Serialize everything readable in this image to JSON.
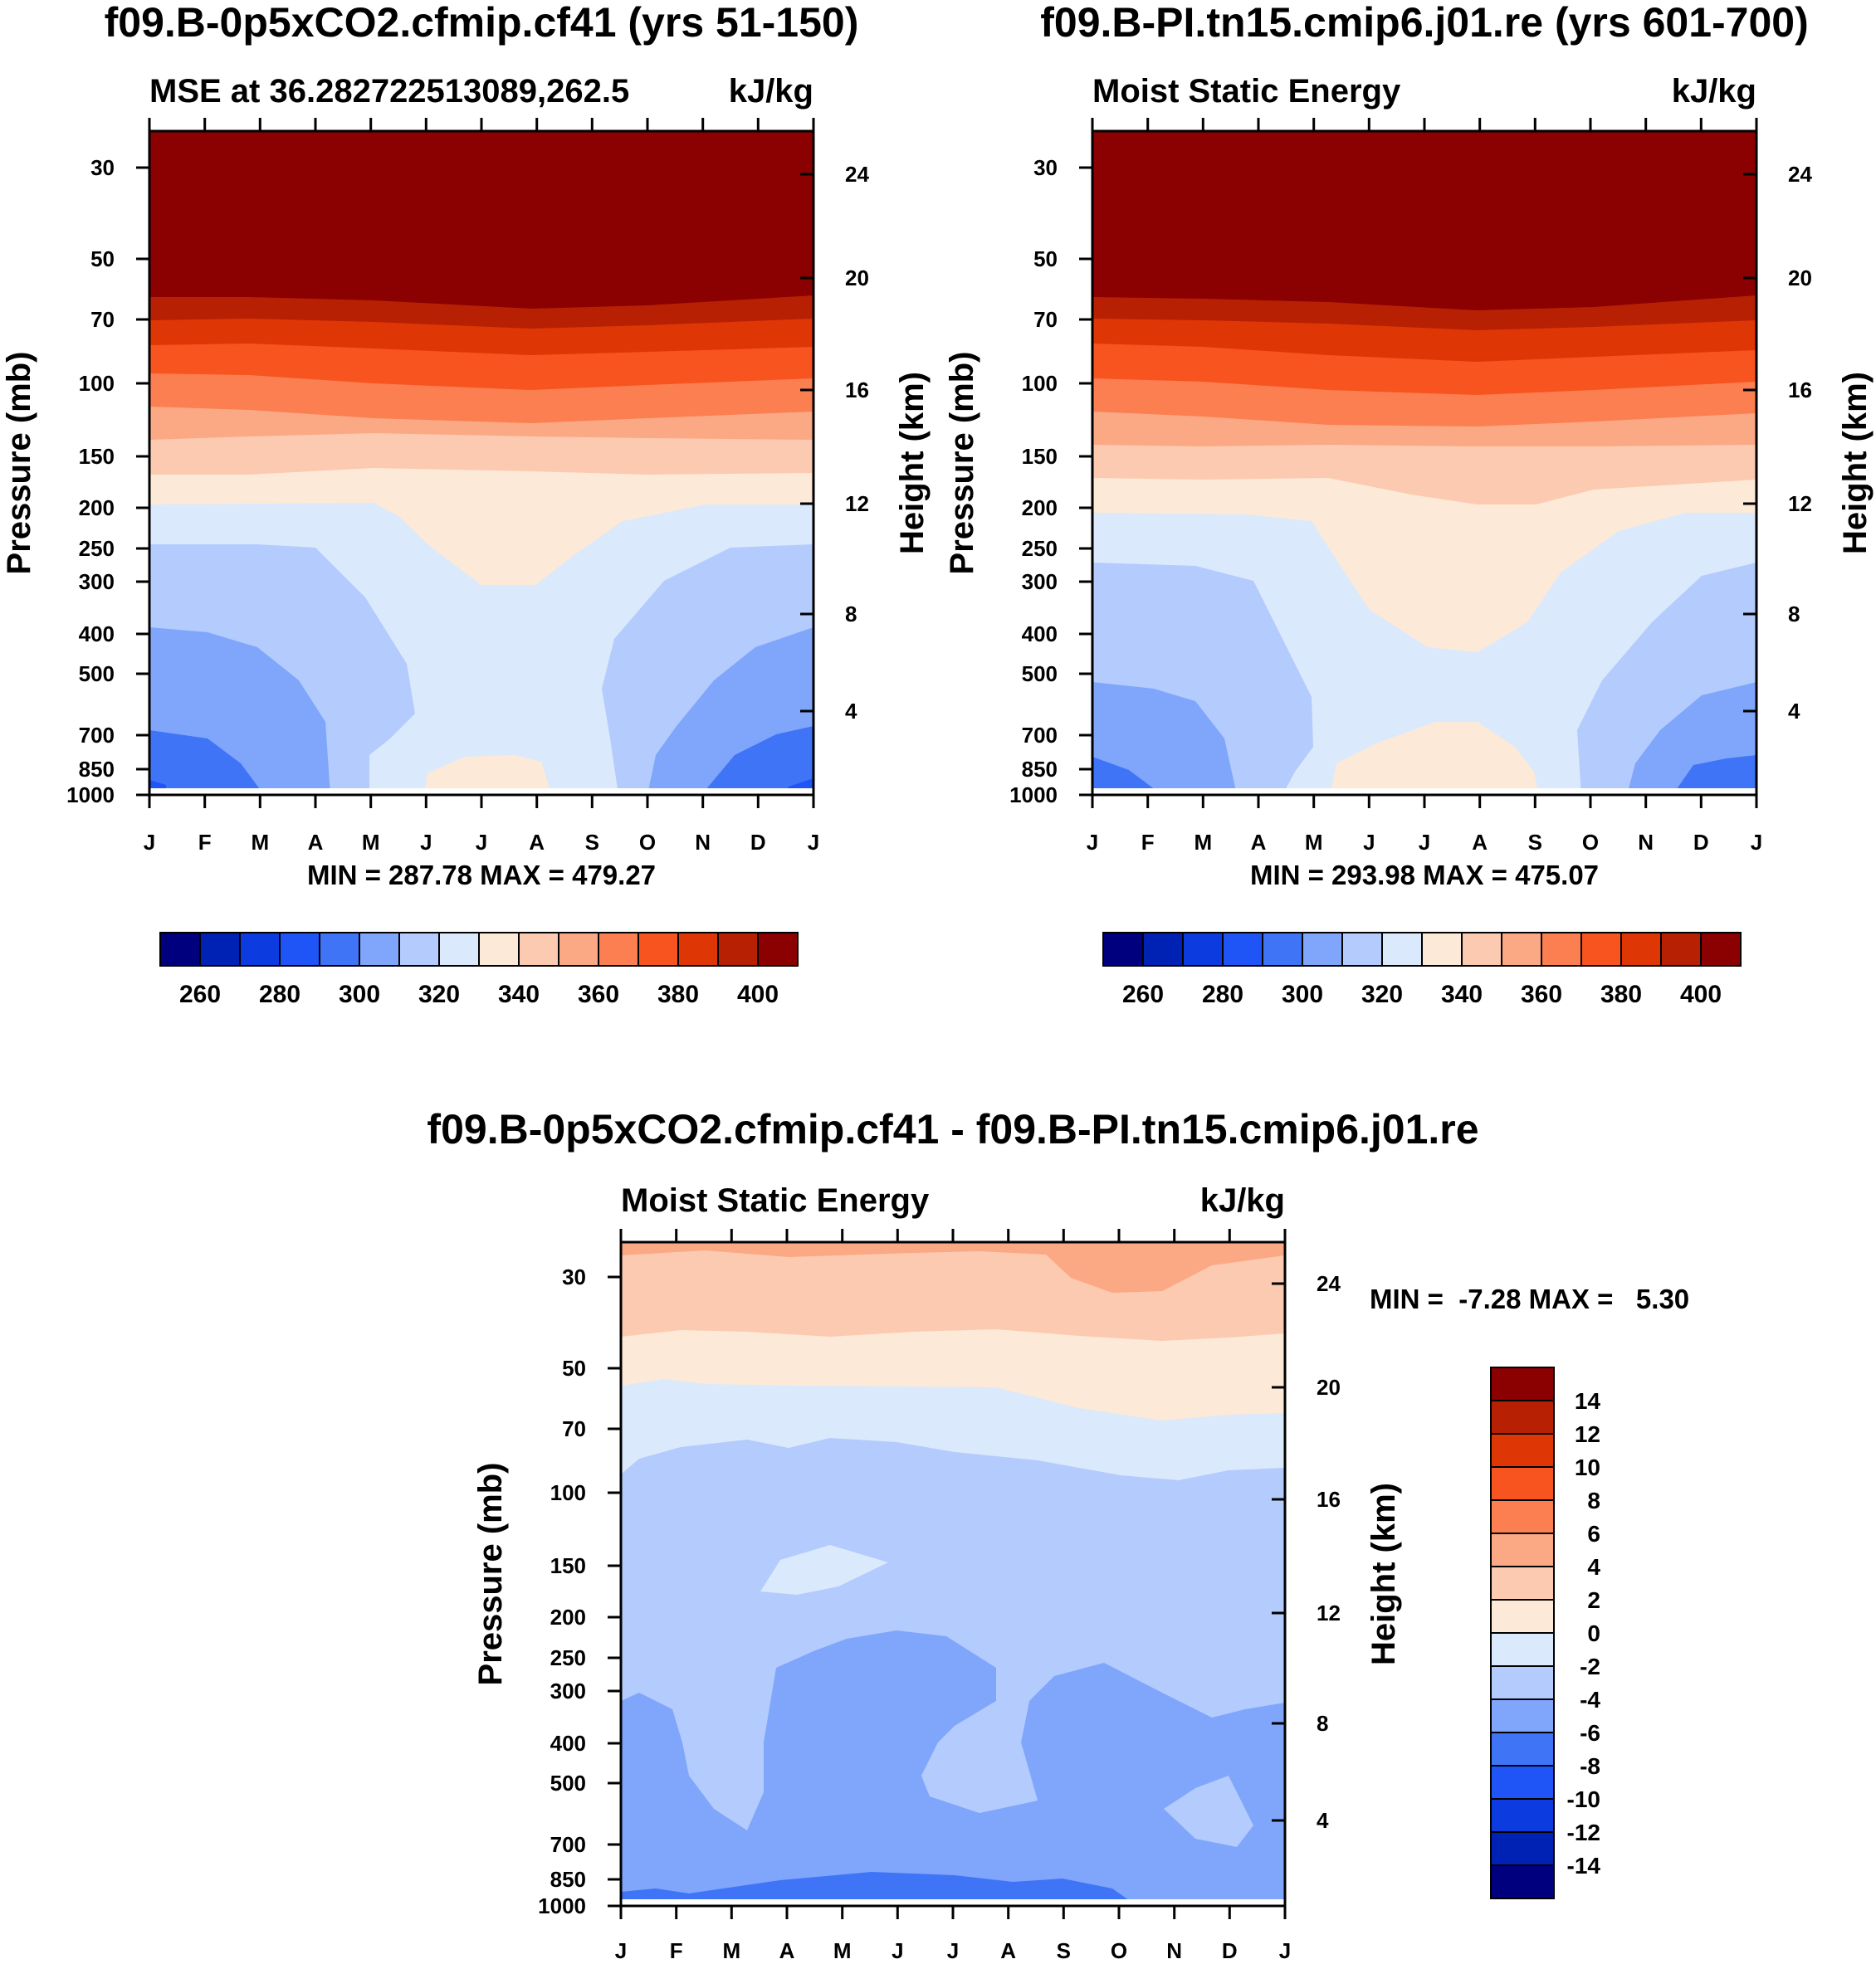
{
  "chart_data": [
    {
      "type": "contour",
      "title": "f09.B-0p5xCO2.cfmip.cf41 (yrs 51-150)",
      "subtitle_left": "MSE at 36.282722513089,262.5",
      "subtitle_right": "kJ/kg",
      "ylabel": "Pressure (mb)",
      "y2label": "Height (km)",
      "x_ticks": [
        "J",
        "F",
        "M",
        "A",
        "M",
        "J",
        "J",
        "A",
        "S",
        "O",
        "N",
        "D",
        "J"
      ],
      "y_ticks": [
        "30",
        "50",
        "70",
        "100",
        "150",
        "200",
        "250",
        "300",
        "400",
        "500",
        "700",
        "850",
        "1000"
      ],
      "y2_ticks": [
        "24",
        "20",
        "16",
        "12",
        "8",
        "4"
      ],
      "minmax": "MIN = 287.78 MAX = 479.27",
      "colorbar_labels": [
        "260",
        "280",
        "300",
        "320",
        "340",
        "360",
        "380",
        "400"
      ]
    },
    {
      "type": "contour",
      "title": "f09.B-PI.tn15.cmip6.j01.re (yrs 601-700)",
      "subtitle_left": "Moist Static Energy",
      "subtitle_right": "kJ/kg",
      "ylabel": "Pressure (mb)",
      "y2label": "Height (km)",
      "x_ticks": [
        "J",
        "F",
        "M",
        "A",
        "M",
        "J",
        "J",
        "A",
        "S",
        "O",
        "N",
        "D",
        "J"
      ],
      "y_ticks": [
        "30",
        "50",
        "70",
        "100",
        "150",
        "200",
        "250",
        "300",
        "400",
        "500",
        "700",
        "850",
        "1000"
      ],
      "y2_ticks": [
        "24",
        "20",
        "16",
        "12",
        "8",
        "4"
      ],
      "minmax": "MIN = 293.98 MAX = 475.07",
      "colorbar_labels": [
        "260",
        "280",
        "300",
        "320",
        "340",
        "360",
        "380",
        "400"
      ]
    },
    {
      "type": "contour",
      "title": "f09.B-0p5xCO2.cfmip.cf41 - f09.B-PI.tn15.cmip6.j01.re",
      "subtitle_left": "Moist Static Energy",
      "subtitle_right": "kJ/kg",
      "ylabel": "Pressure (mb)",
      "y2label": "Height (km)",
      "x_ticks": [
        "J",
        "F",
        "M",
        "A",
        "M",
        "J",
        "J",
        "A",
        "S",
        "O",
        "N",
        "D",
        "J"
      ],
      "y_ticks": [
        "30",
        "50",
        "70",
        "100",
        "150",
        "200",
        "250",
        "300",
        "400",
        "500",
        "700",
        "850",
        "1000"
      ],
      "y2_ticks": [
        "24",
        "20",
        "16",
        "12",
        "8",
        "4"
      ],
      "minmax": "MIN =  -7.28 MAX =   5.30",
      "colorbar_labels": [
        "14",
        "12",
        "10",
        "8",
        "6",
        "4",
        "2",
        "0",
        "-2",
        "-4",
        "-6",
        "-8",
        "-10",
        "-12",
        "-14"
      ]
    }
  ],
  "palette": [
    "#00007f",
    "#0022b4",
    "#0c3be0",
    "#1f55f7",
    "#3f74f7",
    "#7fa6fb",
    "#b3cbfd",
    "#dbe9fc",
    "#fde9d7",
    "#fccab0",
    "#fba885",
    "#fb7f51",
    "#f75420",
    "#df3605",
    "#b72003",
    "#8b0000"
  ]
}
